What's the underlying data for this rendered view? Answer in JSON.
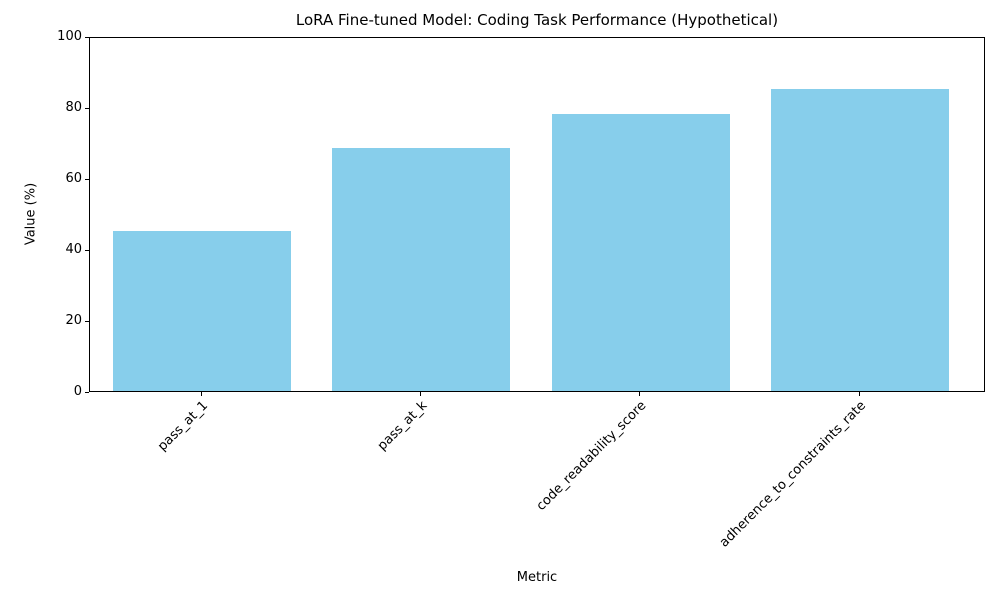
{
  "chart_data": {
    "type": "bar",
    "title": "LoRA Fine-tuned Model: Coding Task Performance (Hypothetical)",
    "xlabel": "Metric",
    "ylabel": "Value (%)",
    "categories": [
      "pass_at_1",
      "pass_at_k",
      "code_readability_score",
      "adherence_to_constraints_rate"
    ],
    "values": [
      45.2,
      68.5,
      78,
      85
    ],
    "ylim": [
      0,
      100
    ],
    "yticks": [
      0,
      20,
      40,
      60,
      80,
      100
    ],
    "bar_color": "#87CEEB",
    "axis_color": "#000000",
    "background_color": "#FFFFFF",
    "grid": false,
    "legend_position": "none",
    "xtick_rotation_deg": 45
  }
}
